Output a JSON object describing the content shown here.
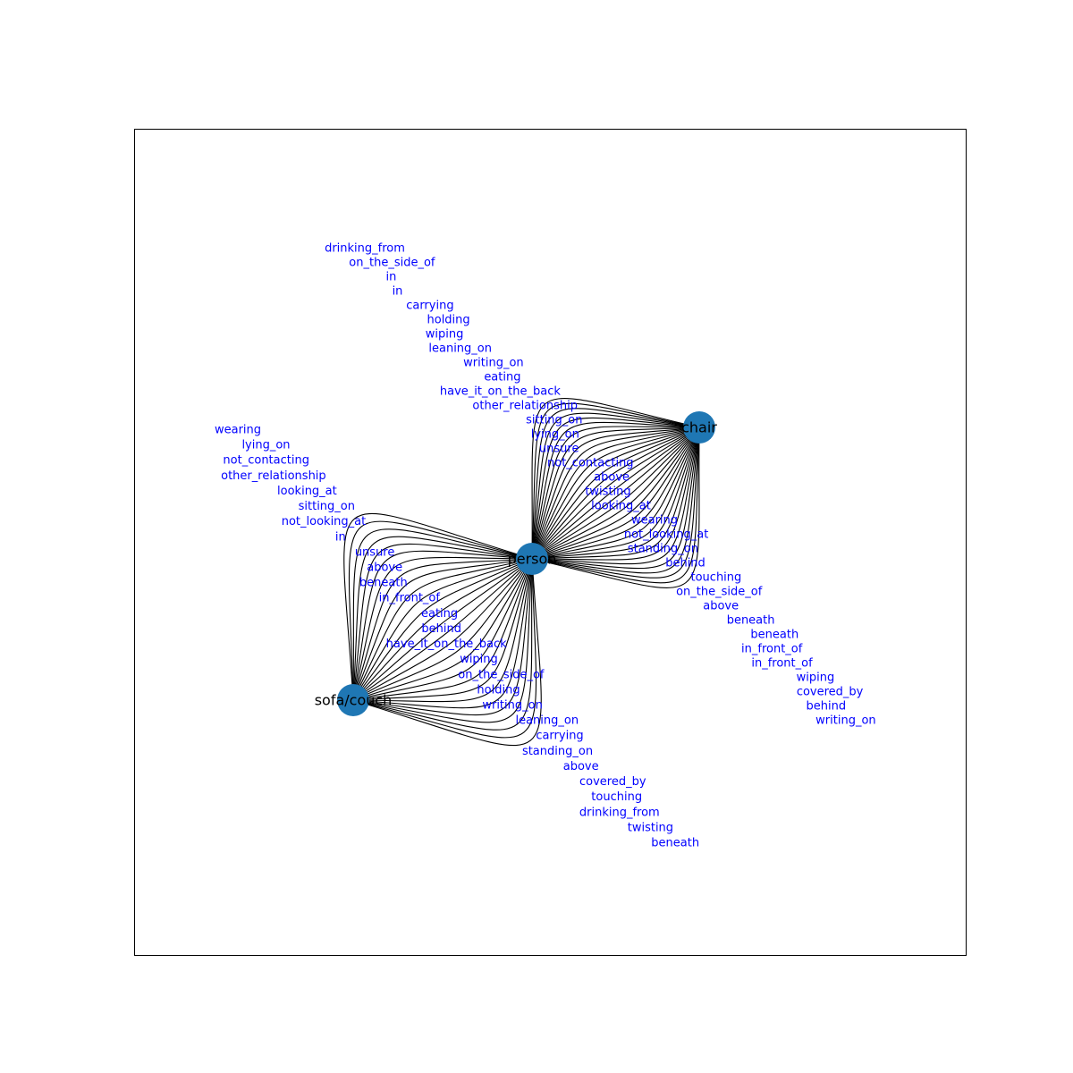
{
  "graph": {
    "colors": {
      "node": "#1f77b4",
      "edge": "#000000",
      "edge_label": "#0000ff"
    },
    "nodes": [
      {
        "id": "person",
        "label": "person"
      },
      {
        "id": "chair",
        "label": "chair"
      },
      {
        "id": "sofa",
        "label": "sofa/couch"
      }
    ],
    "edge_groups": [
      {
        "from": "person",
        "to": "chair",
        "labels": [
          "drinking_from",
          "on_the_side_of",
          "in",
          "in",
          "carrying",
          "holding",
          "wiping",
          "leaning_on",
          "writing_on",
          "eating",
          "have_it_on_the_back",
          "other_relationship",
          "sitting_on",
          "lying_on",
          "unsure",
          "not_contacting",
          "above",
          "twisting",
          "looking_at",
          "wearing",
          "not_looking_at",
          "standing_on",
          "behind",
          "touching",
          "on_the_side_of",
          "above",
          "beneath",
          "beneath",
          "in_front_of",
          "in_front_of",
          "wiping",
          "covered_by",
          "behind",
          "writing_on"
        ]
      },
      {
        "from": "person",
        "to": "sofa",
        "labels": [
          "wearing",
          "lying_on",
          "not_contacting",
          "other_relationship",
          "looking_at",
          "sitting_on",
          "not_looking_at",
          "in",
          "unsure",
          "above",
          "beneath",
          "in_front_of",
          "eating",
          "behind",
          "have_it_on_the_back",
          "wiping",
          "on_the_side_of",
          "holding",
          "writing_on",
          "leaning_on",
          "carrying",
          "standing_on",
          "above",
          "covered_by",
          "touching",
          "drinking_from",
          "twisting",
          "beneath"
        ]
      }
    ]
  }
}
